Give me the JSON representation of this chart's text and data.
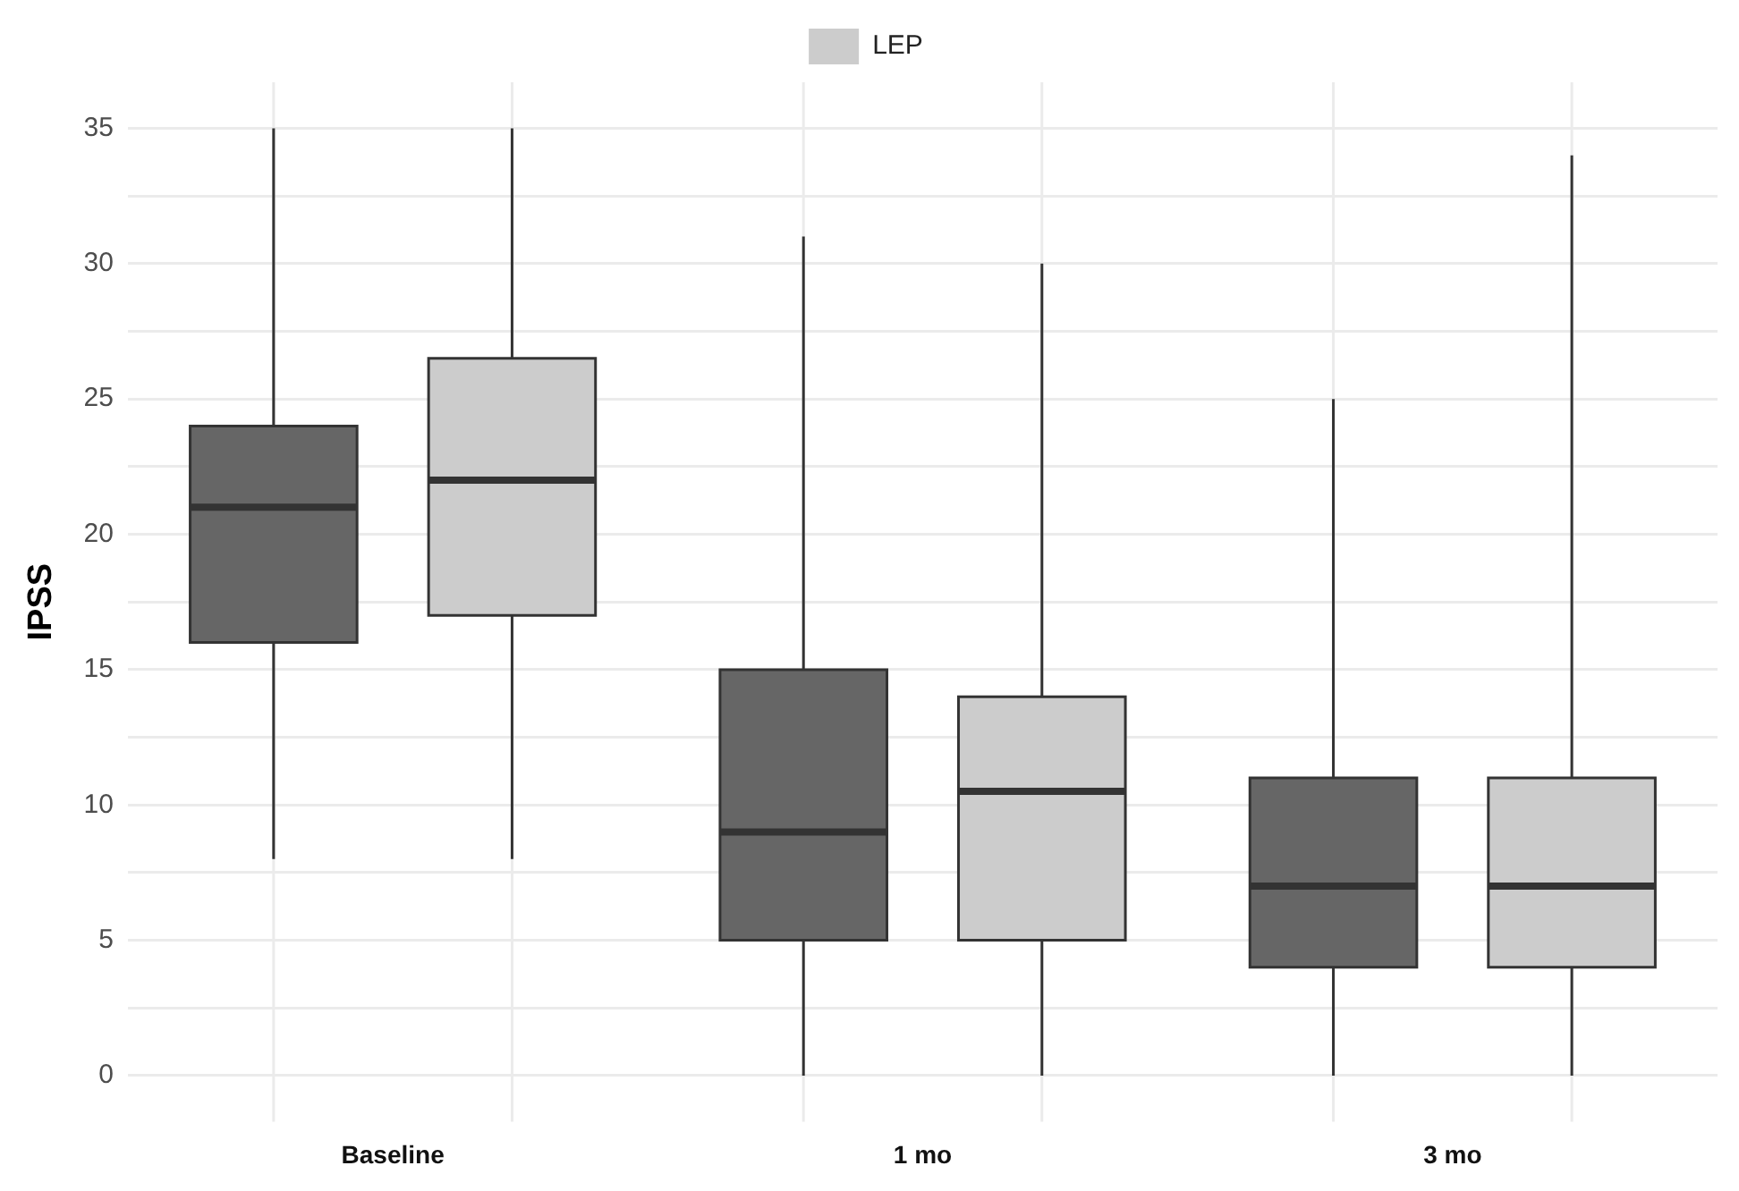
{
  "chart_data": {
    "type": "box",
    "ylabel": "IPSS",
    "categories": [
      "Baseline",
      "1 mo",
      "3 mo"
    ],
    "series": [
      {
        "color": "#666666",
        "boxes": [
          {
            "low": 8,
            "q1": 16,
            "median": 21,
            "q3": 24,
            "high": 35
          },
          {
            "low": 0,
            "q1": 5,
            "median": 9,
            "q3": 15,
            "high": 31
          },
          {
            "low": 0,
            "q1": 4,
            "median": 7,
            "q3": 11,
            "high": 25
          }
        ]
      },
      {
        "name": "LEP",
        "color": "#cccccc",
        "boxes": [
          {
            "low": 8,
            "q1": 17,
            "median": 22,
            "q3": 26.5,
            "high": 35
          },
          {
            "low": 0,
            "q1": 5,
            "median": 10.5,
            "q3": 14,
            "high": 30
          },
          {
            "low": 0,
            "q1": 4,
            "median": 7,
            "q3": 11,
            "high": 34
          }
        ]
      }
    ],
    "ylim": [
      -1.7,
      36.7
    ],
    "yticks": [
      0,
      {
        "value": 2.5,
        "label": null
      },
      5,
      {
        "value": 7.5,
        "label": null
      },
      10,
      {
        "value": 12.5,
        "label": null
      },
      15,
      {
        "value": 17.5,
        "label": null
      },
      20,
      {
        "value": 22.5,
        "label": null
      },
      25,
      {
        "value": 27.5,
        "label": null
      },
      30,
      {
        "value": 32.5,
        "label": null
      },
      35
    ],
    "grid": true,
    "legend": "top"
  }
}
